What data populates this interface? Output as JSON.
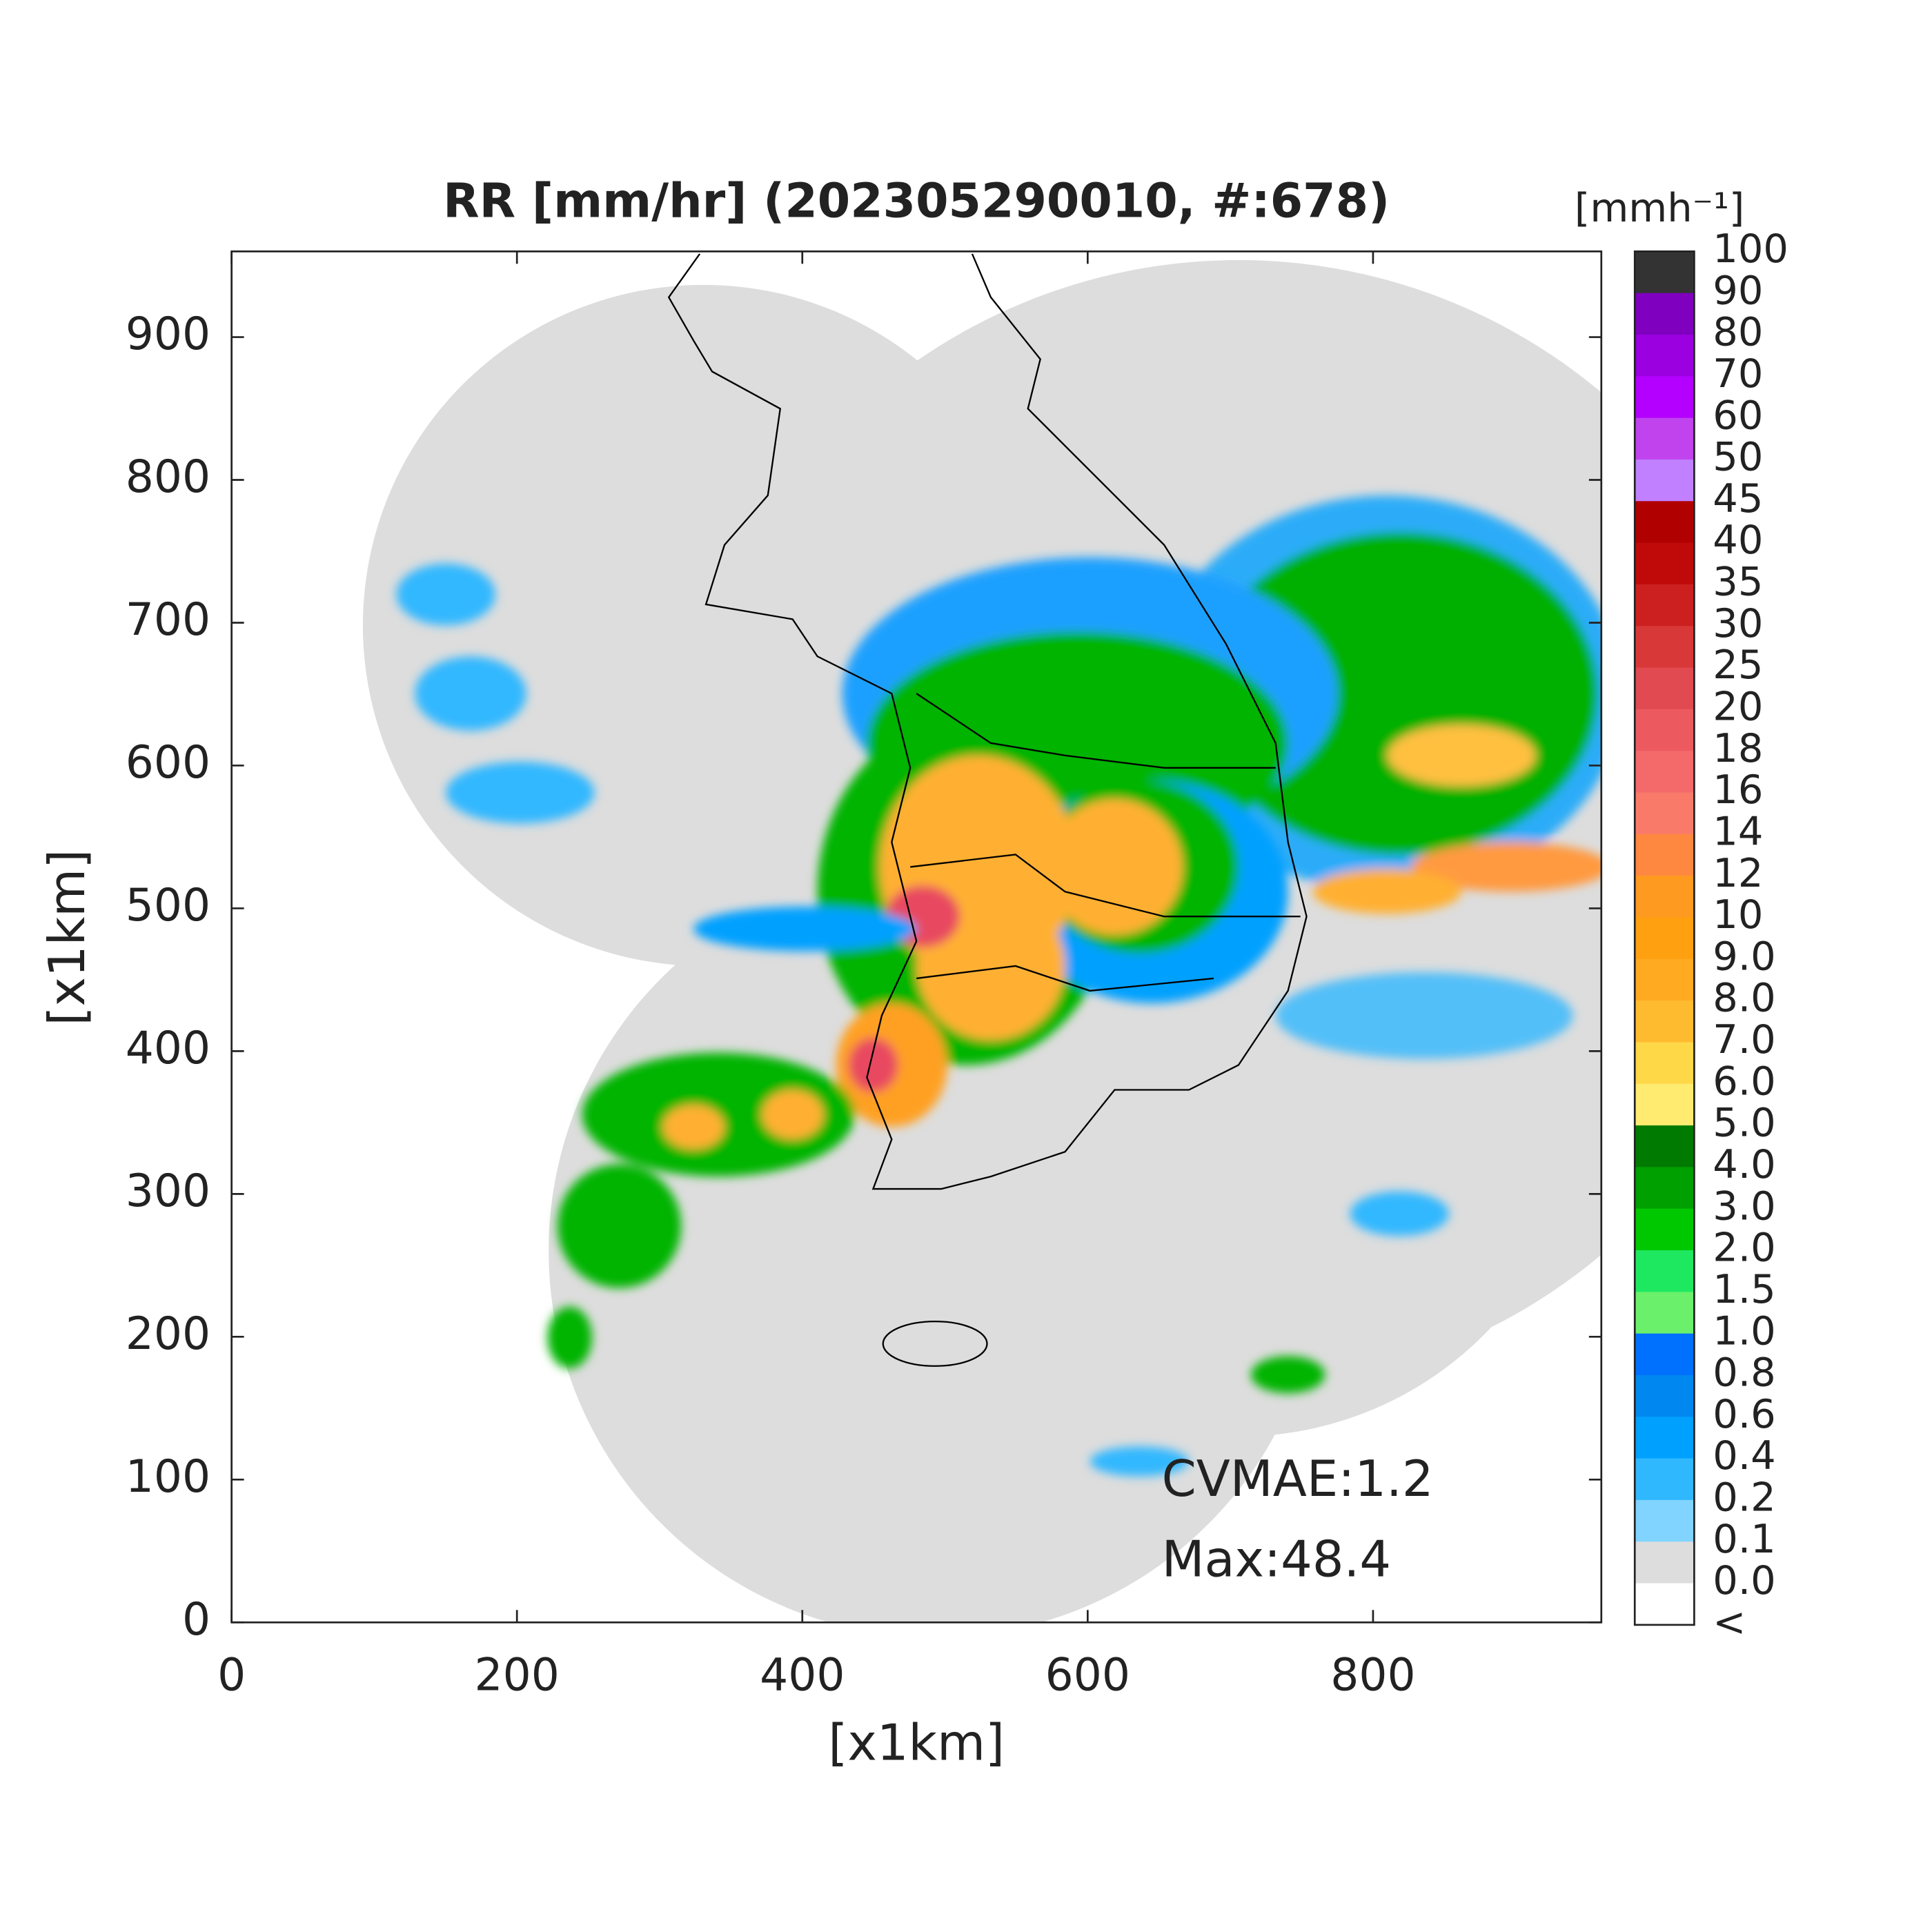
{
  "title": "RR [mm/hr] (202305290010, #:678)",
  "x_axis": {
    "label": "[x1km]",
    "lim": [
      0,
      960
    ],
    "ticks": [
      0,
      200,
      400,
      600,
      800
    ]
  },
  "y_axis": {
    "label": "[x1km]",
    "lim": [
      0,
      960
    ],
    "ticks": [
      0,
      100,
      200,
      300,
      400,
      500,
      600,
      700,
      800,
      900
    ]
  },
  "colorbar": {
    "unit": "[mmh⁻¹]",
    "labels": [
      "100",
      "90",
      "80",
      "70",
      "60",
      "50",
      "45",
      "40",
      "35",
      "30",
      "25",
      "20",
      "18",
      "16",
      "14",
      "12",
      "10",
      "9.0",
      "8.0",
      "7.0",
      "6.0",
      "5.0",
      "4.0",
      "3.0",
      "2.0",
      "1.5",
      "1.0",
      "0.8",
      "0.6",
      "0.4",
      "0.2",
      "0.1",
      "0.0",
      "<"
    ],
    "colors": [
      "#333333",
      "#7f00bf",
      "#9a00e0",
      "#b300ff",
      "#c043ee",
      "#c080ff",
      "#b00000",
      "#c00a0a",
      "#cc2020",
      "#d83838",
      "#e04a50",
      "#ec5a60",
      "#f46a6a",
      "#fa7a6a",
      "#ff8840",
      "#ff9a20",
      "#ffa010",
      "#ffaa20",
      "#ffbb30",
      "#ffd848",
      "#ffeb70",
      "#007a00",
      "#00a000",
      "#00c800",
      "#1ee860",
      "#6af06a",
      "#0070ff",
      "#0088f0",
      "#00a0ff",
      "#30b8ff",
      "#80d4ff",
      "#dddddd",
      "#ffffff"
    ]
  },
  "annotations": [
    "CVMAE:1.2",
    "Max:48.4"
  ]
}
